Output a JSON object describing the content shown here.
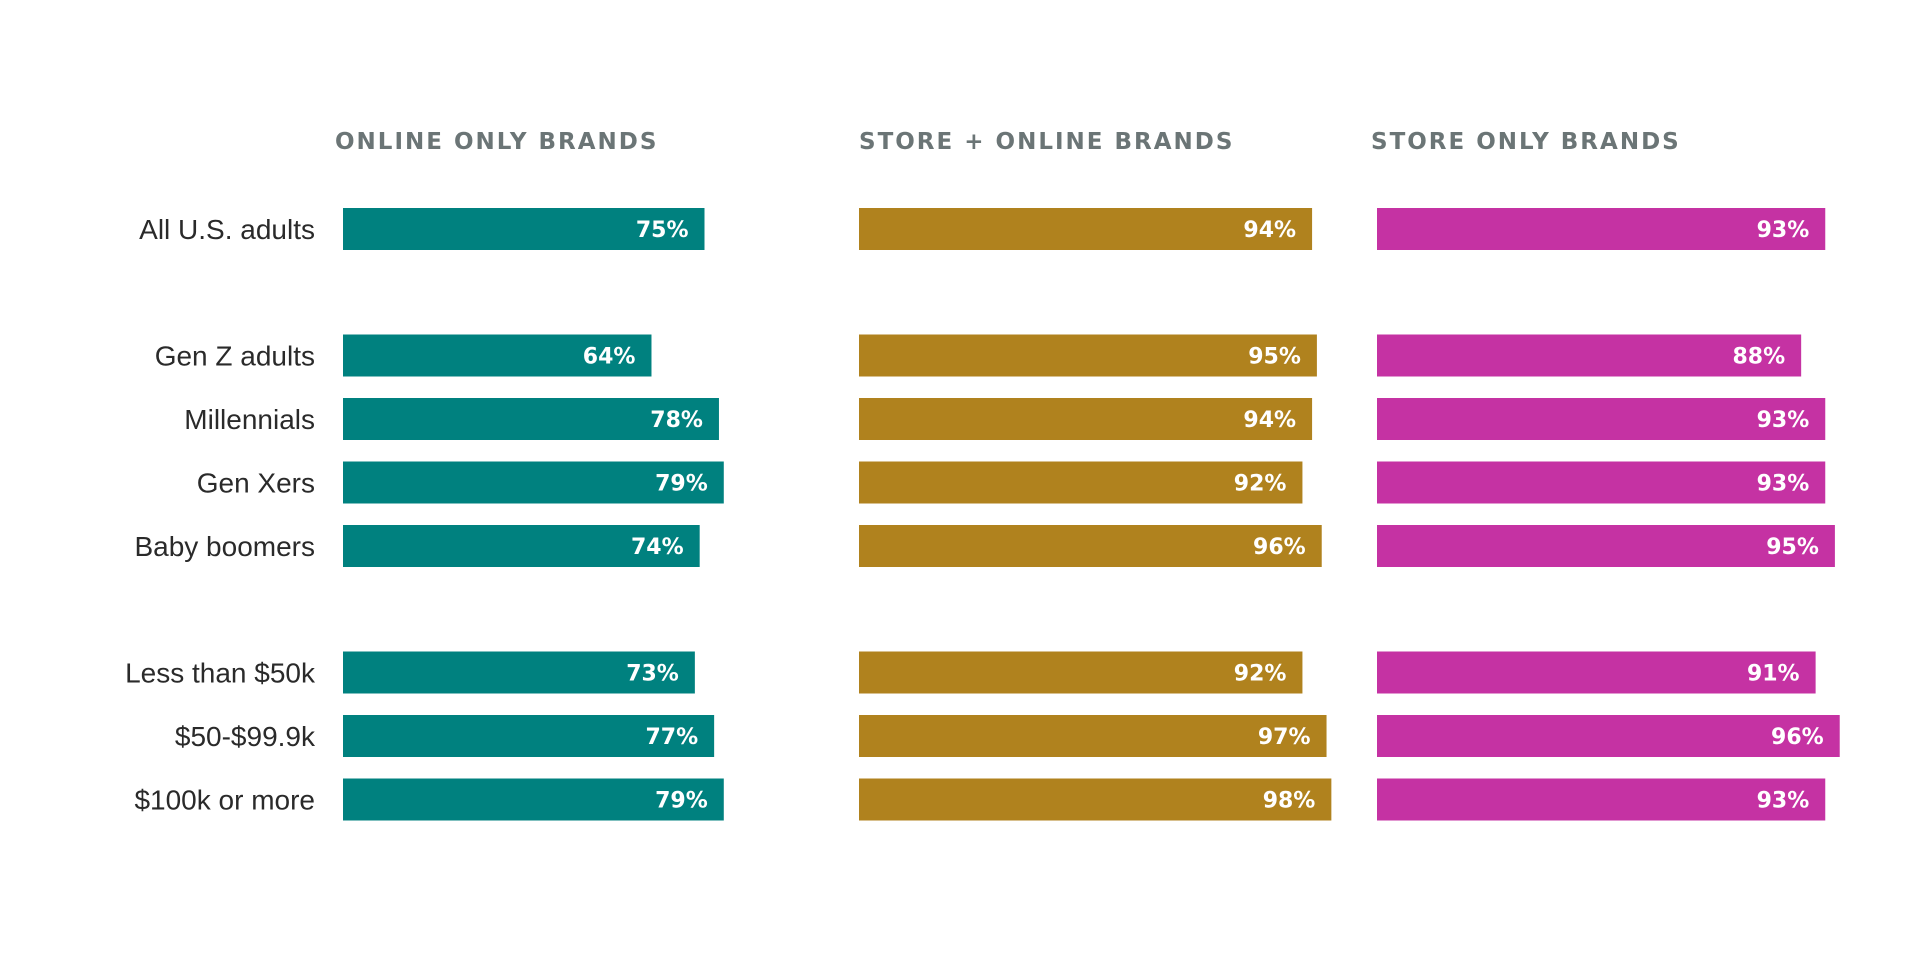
{
  "chart_data": {
    "type": "bar",
    "orientation": "horizontal",
    "value_suffix": "%",
    "xlim": [
      0,
      100
    ],
    "grid": false,
    "legend": "none",
    "categories": [
      "All U.S. adults",
      "Gen Z adults",
      "Millennials",
      "Gen Xers",
      "Baby boomers",
      "Less than $50k",
      "$50-$99.9k",
      "$100k or more"
    ],
    "category_groups": [
      [
        "All U.S. adults"
      ],
      [
        "Gen Z adults",
        "Millennials",
        "Gen Xers",
        "Baby boomers"
      ],
      [
        "Less than $50k",
        "$50-$99.9k",
        "$100k or more"
      ]
    ],
    "series": [
      {
        "name": "ONLINE ONLY BRANDS",
        "color": "#00817f",
        "values": [
          75,
          64,
          78,
          79,
          74,
          73,
          77,
          79
        ]
      },
      {
        "name": "STORE + ONLINE BRANDS",
        "color": "#b0821e",
        "values": [
          94,
          95,
          94,
          92,
          96,
          92,
          97,
          98
        ]
      },
      {
        "name": "STORE ONLY BRANDS",
        "color": "#c532a3",
        "values": [
          93,
          88,
          93,
          93,
          95,
          91,
          96,
          93
        ]
      }
    ]
  }
}
